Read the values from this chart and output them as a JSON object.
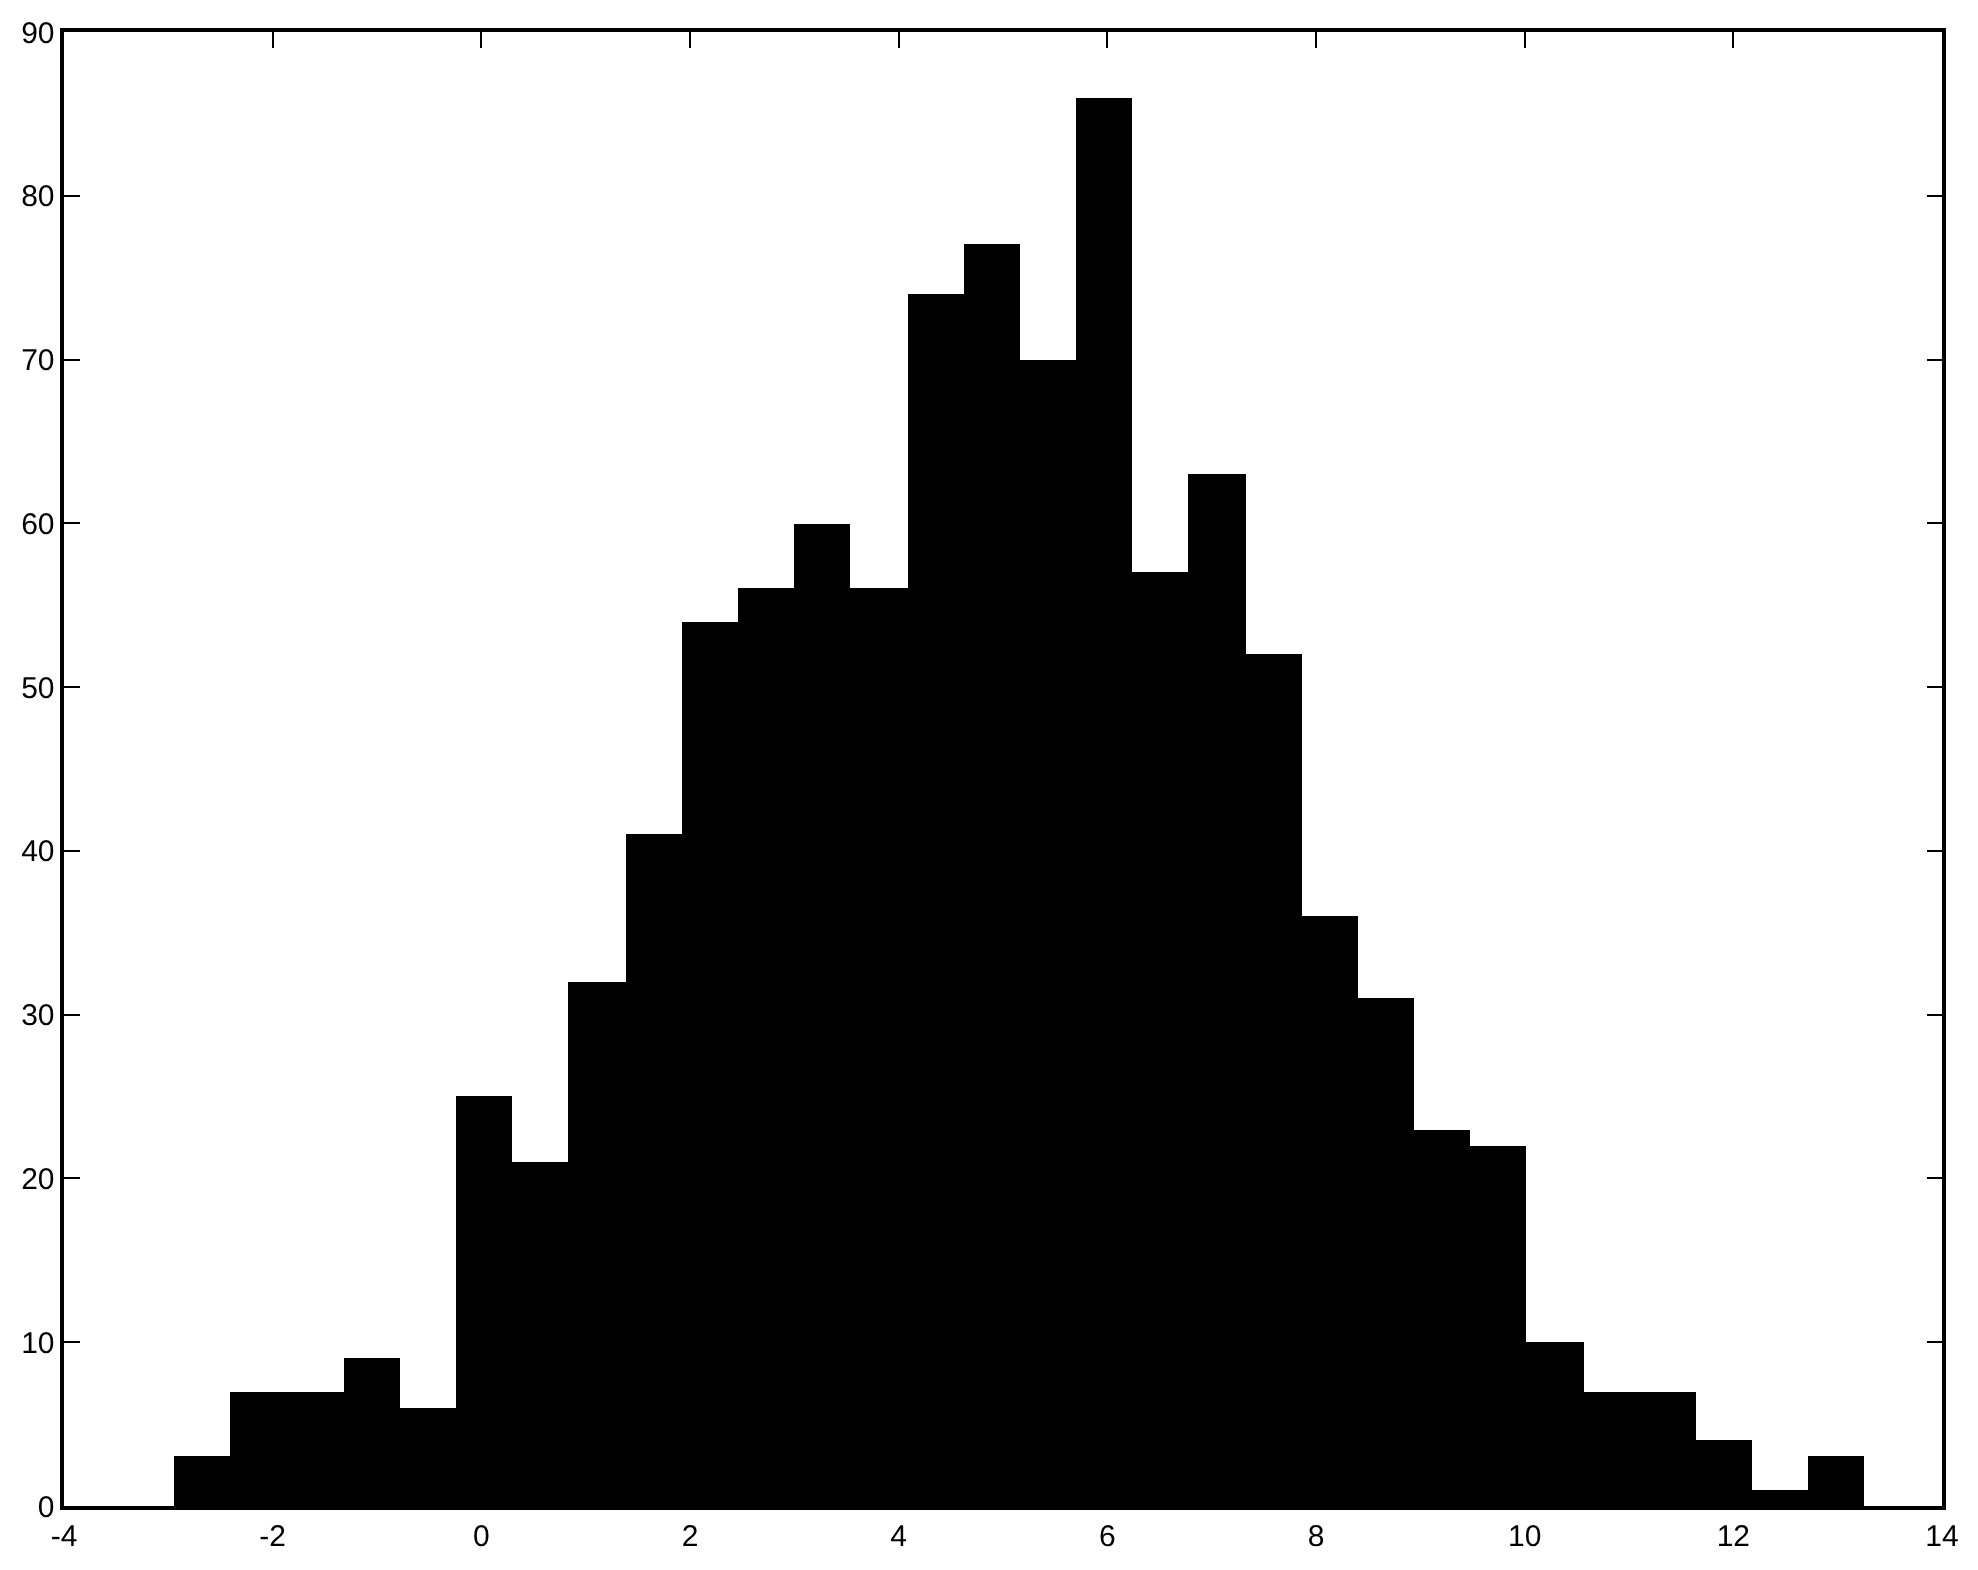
{
  "chart_data": {
    "type": "histogram",
    "color": "#000000",
    "bins": [
      -2.94,
      -2.4,
      -1.86,
      -1.32,
      -0.78,
      -0.24,
      0.3,
      0.84,
      1.38,
      1.92,
      2.46,
      3.0,
      3.54,
      4.08,
      4.62,
      5.16,
      5.7,
      6.24,
      6.78,
      7.32,
      7.86,
      8.4,
      8.94,
      9.48,
      10.02,
      10.56,
      11.1,
      11.64,
      12.18,
      12.72,
      13.26
    ],
    "values": [
      3,
      7,
      7,
      9,
      6,
      25,
      21,
      32,
      41,
      54,
      56,
      60,
      56,
      74,
      77,
      70,
      86,
      57,
      63,
      52,
      36,
      31,
      23,
      22,
      10,
      7,
      7,
      4,
      1,
      3
    ],
    "xlim": [
      -4,
      14
    ],
    "xticks": [
      -4,
      -2,
      0,
      2,
      4,
      6,
      8,
      10,
      12,
      14
    ],
    "ylim": [
      0,
      90
    ],
    "yticks": [
      0,
      10,
      20,
      30,
      40,
      50,
      60,
      70,
      80,
      90
    ]
  }
}
